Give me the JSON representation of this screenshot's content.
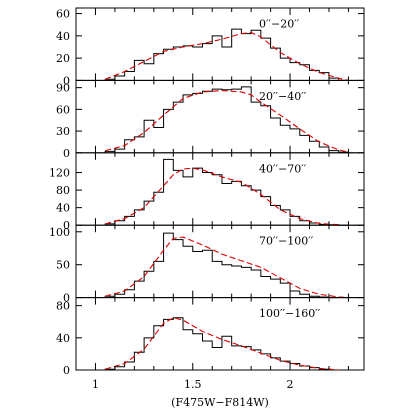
{
  "chart_data": {
    "type": "histogram",
    "layout": "stacked-panels",
    "shared_x": true,
    "xlabel": "(F475W−F814W)",
    "xlim": [
      0.9,
      2.38
    ],
    "xticks": [
      1,
      1.5,
      2
    ],
    "xtick_labels": [
      "1",
      "1.5",
      "2"
    ],
    "bin_width": 0.05,
    "bin_starts": [
      1.05,
      1.1,
      1.15,
      1.2,
      1.25,
      1.3,
      1.35,
      1.4,
      1.45,
      1.5,
      1.55,
      1.6,
      1.65,
      1.7,
      1.75,
      1.8,
      1.85,
      1.9,
      1.95,
      2.0,
      2.05,
      2.1,
      2.15,
      2.2,
      2.25
    ],
    "style": {
      "histogram_color": "#000000",
      "fit_color": "#dd0000",
      "fit_dash": "dashed"
    },
    "panels": [
      {
        "label": "0′′−20′′",
        "ylim": [
          0,
          65
        ],
        "yticks": [
          0,
          20,
          40,
          60
        ],
        "ytick_labels": [
          "0",
          "20",
          "40",
          "60"
        ],
        "counts": [
          1,
          4,
          8,
          18,
          15,
          24,
          28,
          30,
          31,
          30,
          33,
          40,
          30,
          46,
          42,
          45,
          38,
          29,
          20,
          16,
          14,
          9,
          7,
          2,
          0
        ],
        "fit": [
          [
            1.05,
            1
          ],
          [
            1.15,
            8
          ],
          [
            1.25,
            17
          ],
          [
            1.35,
            26
          ],
          [
            1.45,
            30
          ],
          [
            1.55,
            33
          ],
          [
            1.65,
            37
          ],
          [
            1.75,
            42
          ],
          [
            1.8,
            43
          ],
          [
            1.85,
            39
          ],
          [
            1.95,
            25
          ],
          [
            2.05,
            15
          ],
          [
            2.15,
            7
          ],
          [
            2.25,
            2
          ],
          [
            2.3,
            0
          ]
        ]
      },
      {
        "label": "20′′−40′′",
        "ylim": [
          0,
          100
        ],
        "yticks": [
          0,
          30,
          60,
          90
        ],
        "ytick_labels": [
          "0",
          "30",
          "60",
          "90"
        ],
        "counts": [
          2,
          5,
          18,
          22,
          45,
          35,
          60,
          70,
          80,
          82,
          85,
          88,
          87,
          88,
          91,
          70,
          65,
          48,
          38,
          33,
          24,
          16,
          8,
          3,
          1
        ],
        "fit": [
          [
            1.05,
            3
          ],
          [
            1.15,
            10
          ],
          [
            1.25,
            28
          ],
          [
            1.35,
            52
          ],
          [
            1.45,
            75
          ],
          [
            1.55,
            84
          ],
          [
            1.65,
            86
          ],
          [
            1.75,
            84
          ],
          [
            1.8,
            80
          ],
          [
            1.85,
            70
          ],
          [
            1.95,
            52
          ],
          [
            2.05,
            33
          ],
          [
            2.15,
            15
          ],
          [
            2.25,
            4
          ],
          [
            2.3,
            1
          ]
        ]
      },
      {
        "label": "40′′−70′′",
        "ylim": [
          0,
          165
        ],
        "yticks": [
          0,
          40,
          80,
          120
        ],
        "ytick_labels": [
          "0",
          "40",
          "80",
          "120"
        ],
        "counts": [
          3,
          10,
          20,
          35,
          55,
          75,
          150,
          125,
          110,
          130,
          120,
          115,
          95,
          100,
          90,
          80,
          65,
          45,
          35,
          20,
          10,
          5,
          2,
          1,
          0
        ],
        "fit": [
          [
            1.05,
            3
          ],
          [
            1.15,
            15
          ],
          [
            1.25,
            40
          ],
          [
            1.35,
            90
          ],
          [
            1.4,
            115
          ],
          [
            1.45,
            128
          ],
          [
            1.5,
            130
          ],
          [
            1.55,
            126
          ],
          [
            1.65,
            110
          ],
          [
            1.75,
            98
          ],
          [
            1.85,
            70
          ],
          [
            1.95,
            35
          ],
          [
            2.05,
            15
          ],
          [
            2.15,
            4
          ],
          [
            2.25,
            1
          ]
        ]
      },
      {
        "label": "70′′−100′′",
        "ylim": [
          0,
          110
        ],
        "yticks": [
          0,
          50,
          100
        ],
        "ytick_labels": [
          "0",
          "50",
          "100"
        ],
        "counts": [
          2,
          5,
          12,
          25,
          40,
          55,
          98,
          88,
          78,
          70,
          72,
          55,
          50,
          48,
          46,
          42,
          32,
          28,
          22,
          10,
          5,
          2,
          1,
          0,
          0
        ],
        "fit": [
          [
            1.05,
            2
          ],
          [
            1.15,
            10
          ],
          [
            1.25,
            32
          ],
          [
            1.35,
            72
          ],
          [
            1.4,
            90
          ],
          [
            1.45,
            92
          ],
          [
            1.55,
            80
          ],
          [
            1.65,
            66
          ],
          [
            1.75,
            56
          ],
          [
            1.85,
            46
          ],
          [
            1.95,
            30
          ],
          [
            2.05,
            14
          ],
          [
            2.15,
            5
          ],
          [
            2.25,
            1
          ],
          [
            2.3,
            0
          ]
        ]
      },
      {
        "label": "100′′−160′′",
        "ylim": [
          0,
          90
        ],
        "yticks": [
          0,
          40,
          80
        ],
        "ytick_labels": [
          "0",
          "40",
          "80"
        ],
        "counts": [
          1,
          4,
          10,
          22,
          40,
          55,
          63,
          65,
          50,
          45,
          36,
          28,
          42,
          30,
          29,
          25,
          20,
          15,
          11,
          8,
          5,
          3,
          1,
          0,
          0
        ],
        "fit": [
          [
            1.05,
            1
          ],
          [
            1.15,
            8
          ],
          [
            1.25,
            26
          ],
          [
            1.35,
            58
          ],
          [
            1.4,
            65
          ],
          [
            1.45,
            62
          ],
          [
            1.55,
            48
          ],
          [
            1.65,
            38
          ],
          [
            1.75,
            30
          ],
          [
            1.85,
            21
          ],
          [
            1.95,
            12
          ],
          [
            2.05,
            6
          ],
          [
            2.15,
            2
          ],
          [
            2.25,
            0
          ]
        ]
      }
    ]
  }
}
